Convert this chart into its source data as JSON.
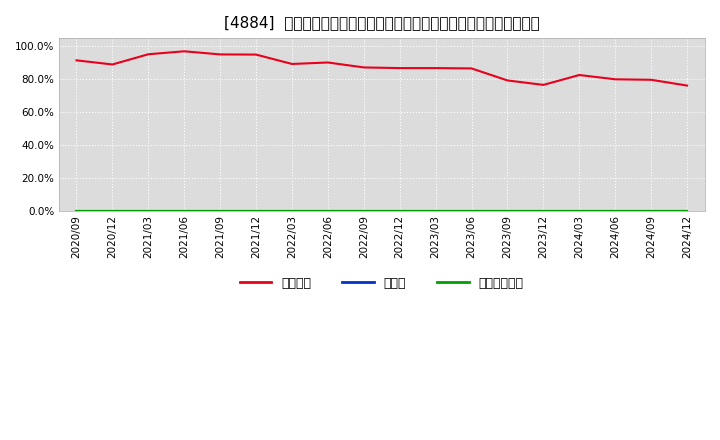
{
  "title": "[4884]  自己資本、のれん、繰延税金資産の総資産に対する比率の推移",
  "x_labels": [
    "2020/09",
    "2020/12",
    "2021/03",
    "2021/06",
    "2021/09",
    "2021/12",
    "2022/03",
    "2022/06",
    "2022/09",
    "2022/12",
    "2023/03",
    "2023/06",
    "2023/09",
    "2023/12",
    "2024/03",
    "2024/06",
    "2024/09",
    "2024/12"
  ],
  "equity_ratio": [
    0.915,
    0.89,
    0.952,
    0.97,
    0.951,
    0.95,
    0.893,
    0.902,
    0.872,
    0.868,
    0.868,
    0.866,
    0.793,
    0.766,
    0.826,
    0.8,
    0.797,
    0.762
  ],
  "noren_ratio": [
    0.0,
    0.0,
    0.0,
    0.0,
    0.0,
    0.0,
    0.0,
    0.0,
    0.0,
    0.0,
    0.0,
    0.0,
    0.0,
    0.0,
    0.0,
    0.0,
    0.0,
    0.0
  ],
  "deferred_tax_ratio": [
    0.0,
    0.0,
    0.0,
    0.0,
    0.0,
    0.0,
    0.0,
    0.0,
    0.0,
    0.0,
    0.0,
    0.0,
    0.0,
    0.0,
    0.0,
    0.0,
    0.0,
    0.0
  ],
  "equity_color": "#e8001c",
  "noren_color": "#0032c8",
  "deferred_color": "#00a000",
  "bg_color": "#ffffff",
  "plot_bg_color": "#dcdcdc",
  "grid_color": "#ffffff",
  "ylim": [
    0.0,
    1.05
  ],
  "yticks": [
    0.0,
    0.2,
    0.4,
    0.6,
    0.8,
    1.0
  ],
  "ytick_labels": [
    "0.0%",
    "20.0%",
    "40.0%",
    "60.0%",
    "80.0%",
    "100.0%"
  ],
  "legend_labels": [
    "自己資本",
    "のれん",
    "繰延税金資産"
  ],
  "title_fontsize": 11,
  "tick_fontsize": 7.5,
  "legend_fontsize": 9
}
